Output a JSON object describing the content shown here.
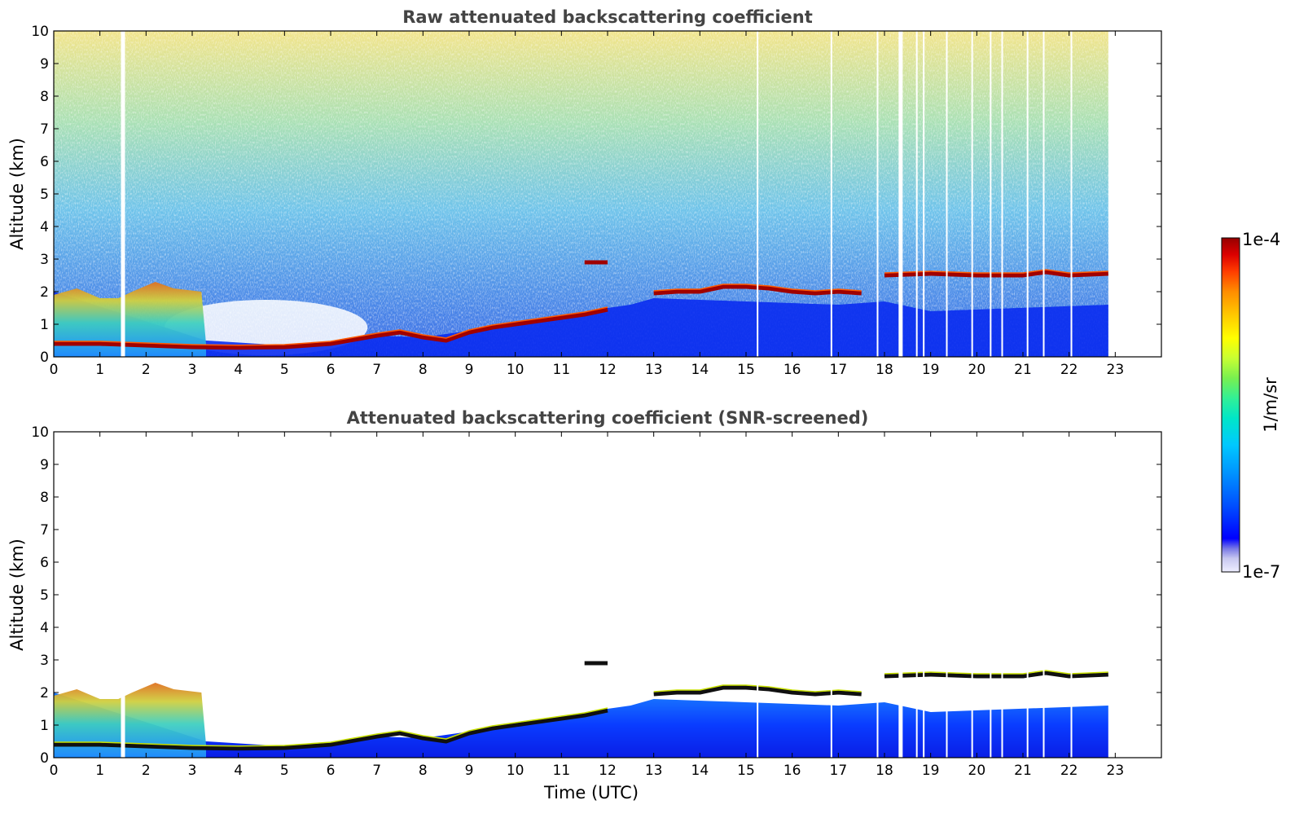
{
  "chart_data": [
    {
      "type": "heatmap",
      "title": "Raw attenuated backscattering coefficient",
      "xlabel": "",
      "ylabel": "Altitude (km)",
      "xlim": [
        0,
        24
      ],
      "ylim": [
        0,
        10
      ],
      "x_ticks": [
        "0",
        "1",
        "2",
        "3",
        "4",
        "5",
        "6",
        "7",
        "8",
        "9",
        "10",
        "11",
        "12",
        "13",
        "14",
        "15",
        "16",
        "17",
        "18",
        "19",
        "20",
        "21",
        "22",
        "23"
      ],
      "y_ticks": [
        "0",
        "1",
        "2",
        "3",
        "4",
        "5",
        "6",
        "7",
        "8",
        "9",
        "10"
      ],
      "data_time_range_hours": [
        0,
        22.85
      ],
      "data_gaps_hours": [
        1.5,
        15.25,
        16.85,
        17.85,
        18.35,
        18.7,
        18.85,
        19.35,
        19.9,
        20.3,
        20.55,
        21.1,
        21.45,
        22.05
      ],
      "cloud_layer_base_km": [
        [
          0.0,
          0.4
        ],
        [
          1.0,
          0.4
        ],
        [
          2.0,
          0.35
        ],
        [
          3.0,
          0.3
        ],
        [
          4.0,
          0.28
        ],
        [
          5.0,
          0.3
        ],
        [
          6.0,
          0.4
        ],
        [
          7.0,
          0.65
        ],
        [
          7.5,
          0.75
        ],
        [
          8.0,
          0.6
        ],
        [
          8.5,
          0.5
        ],
        [
          9.0,
          0.75
        ],
        [
          9.5,
          0.9
        ],
        [
          10.0,
          1.0
        ],
        [
          10.5,
          1.1
        ],
        [
          11.0,
          1.2
        ],
        [
          11.5,
          1.3
        ],
        [
          12.0,
          1.45
        ],
        [
          12.05,
          1.55
        ],
        [
          13.0,
          1.95
        ],
        [
          13.5,
          2.0
        ],
        [
          14.0,
          2.0
        ],
        [
          14.5,
          2.15
        ],
        [
          15.0,
          2.15
        ],
        [
          15.5,
          2.1
        ],
        [
          16.0,
          2.0
        ],
        [
          16.5,
          1.95
        ],
        [
          17.0,
          2.0
        ],
        [
          17.5,
          1.95
        ],
        [
          18.0,
          2.5
        ],
        [
          19.0,
          2.55
        ],
        [
          20.0,
          2.5
        ],
        [
          21.0,
          2.5
        ],
        [
          21.5,
          2.6
        ],
        [
          22.0,
          2.5
        ],
        [
          22.85,
          2.55
        ]
      ],
      "elevated_layer_km": [
        [
          11.5,
          2.9
        ],
        [
          12.0,
          2.9
        ]
      ],
      "low_clouds_km": [
        [
          0.0,
          1.9
        ],
        [
          0.5,
          2.1
        ],
        [
          1.0,
          1.8
        ],
        [
          1.4,
          1.8
        ],
        [
          1.7,
          2.0
        ],
        [
          2.2,
          2.3
        ],
        [
          2.6,
          2.1
        ],
        [
          3.2,
          2.0
        ]
      ],
      "boundary_layer_top_km": [
        [
          0,
          2.0
        ],
        [
          3.3,
          0.5
        ],
        [
          5.0,
          0.35
        ],
        [
          6.0,
          0.4
        ],
        [
          7.0,
          0.65
        ],
        [
          8.0,
          0.6
        ],
        [
          9.0,
          0.8
        ],
        [
          10.0,
          1.0
        ],
        [
          11.0,
          1.2
        ],
        [
          12.0,
          1.5
        ],
        [
          12.5,
          1.6
        ],
        [
          13.0,
          1.8
        ],
        [
          15.0,
          1.7
        ],
        [
          17.0,
          1.6
        ],
        [
          18.0,
          1.7
        ],
        [
          19.0,
          1.4
        ],
        [
          22.85,
          1.6
        ]
      ]
    },
    {
      "type": "heatmap",
      "title": "Attenuated backscattering coefficient (SNR-screened)",
      "xlabel": "Time (UTC)",
      "ylabel": "Altitude (km)",
      "xlim": [
        0,
        24
      ],
      "ylim": [
        0,
        10
      ],
      "x_ticks": [
        "0",
        "1",
        "2",
        "3",
        "4",
        "5",
        "6",
        "7",
        "8",
        "9",
        "10",
        "11",
        "12",
        "13",
        "14",
        "15",
        "16",
        "17",
        "18",
        "19",
        "20",
        "21",
        "22",
        "23"
      ],
      "y_ticks": [
        "0",
        "1",
        "2",
        "3",
        "4",
        "5",
        "6",
        "7",
        "8",
        "9",
        "10"
      ]
    }
  ],
  "colorbar": {
    "label": "1/m/sr",
    "min_label": "1e-7",
    "max_label": "1e-4",
    "colormap": [
      "#eeeeff",
      "#c8c8f0",
      "#7878e6",
      "#0000ff",
      "#0050ff",
      "#0096ff",
      "#00c8ff",
      "#00e6c8",
      "#32f096",
      "#78f050",
      "#c8ff32",
      "#ffff00",
      "#ffc800",
      "#ff8c00",
      "#ff3c00",
      "#dc0000",
      "#960000"
    ]
  }
}
